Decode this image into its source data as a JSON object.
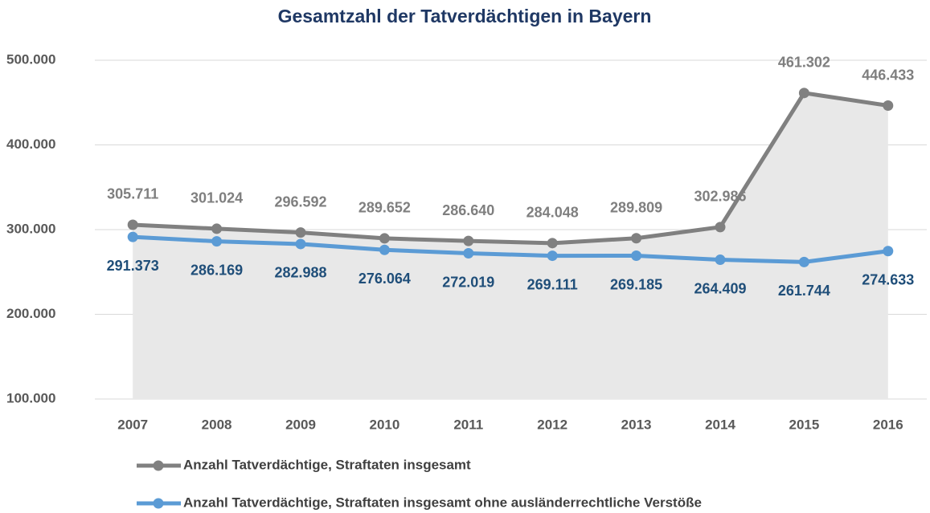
{
  "chart_data": {
    "type": "line",
    "title": "Gesamtzahl der Tatverdächtigen in Bayern",
    "categories": [
      "2007",
      "2008",
      "2009",
      "2010",
      "2011",
      "2012",
      "2013",
      "2014",
      "2015",
      "2016"
    ],
    "series": [
      {
        "name": "Anzahl Tatverdächtige, Straftaten insgesamt",
        "color": "#808080",
        "label_color": "#7f7f7f",
        "area_color": "#e8e8e8",
        "values": [
          305711,
          301024,
          296592,
          289652,
          286640,
          284048,
          289809,
          302986,
          461302,
          446433
        ],
        "value_labels": [
          "305.711",
          "301.024",
          "296.592",
          "289.652",
          "286.640",
          "284.048",
          "289.809",
          "302.986",
          "461.302",
          "446.433"
        ]
      },
      {
        "name": "Anzahl Tatverdächtige, Straftaten insgesamt ohne ausländerrechtliche Verstöße",
        "color": "#5b9bd5",
        "label_color": "#1f4e79",
        "values": [
          291373,
          286169,
          282988,
          276064,
          272019,
          269111,
          269185,
          264409,
          261744,
          274633
        ],
        "value_labels": [
          "291.373",
          "286.169",
          "282.988",
          "276.064",
          "272.019",
          "269.111",
          "269.185",
          "264.409",
          "261.744",
          "274.633"
        ]
      }
    ],
    "ylim": [
      100000,
      500000
    ],
    "yticks": [
      {
        "value": 100000,
        "label": "100.000"
      },
      {
        "value": 200000,
        "label": "200.000"
      },
      {
        "value": 300000,
        "label": "300.000"
      },
      {
        "value": 400000,
        "label": "400.000"
      },
      {
        "value": 500000,
        "label": "500.000"
      }
    ],
    "grid": true
  }
}
